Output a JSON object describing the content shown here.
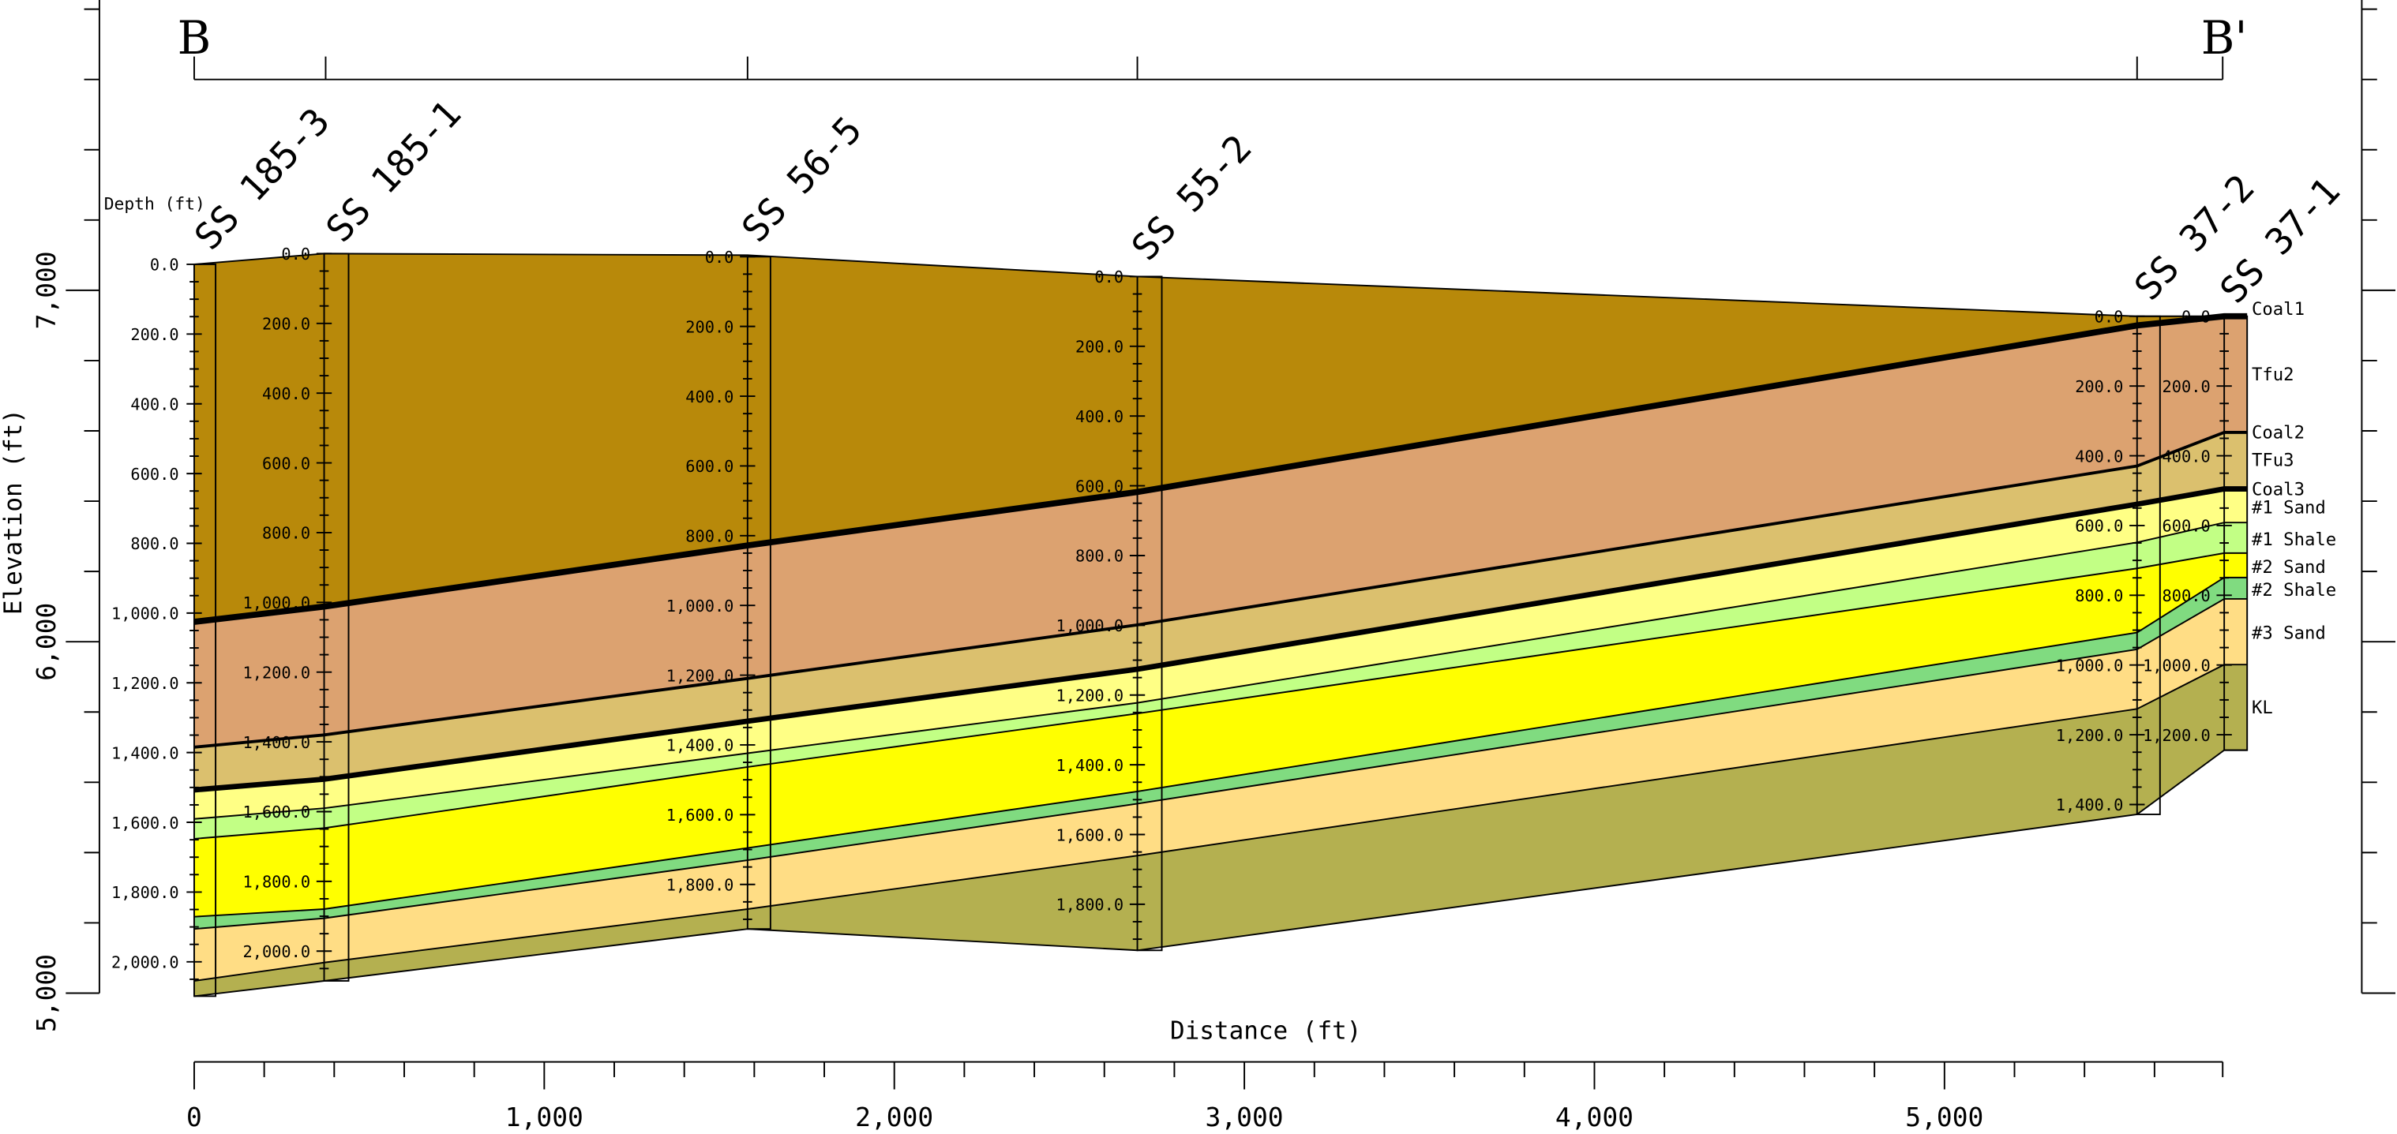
{
  "section": {
    "start": "B",
    "end": "B'"
  },
  "depth_label": "Depth (ft)",
  "wells": [
    {
      "name": "SS 185-3",
      "depths": [
        "0.0",
        "200.0",
        "400.0",
        "600.0",
        "800.0",
        "1,000.0",
        "1,200.0",
        "1,400.0",
        "1,600.0",
        "1,800.0",
        "2,000.0"
      ]
    },
    {
      "name": "SS 185-1",
      "depths": [
        "0.0",
        "200.0",
        "400.0",
        "600.0",
        "800.0",
        "1,000.0",
        "1,200.0",
        "1,400.0",
        "1,600.0",
        "1,800.0",
        "2,000.0"
      ]
    },
    {
      "name": "SS 56-5",
      "depths": [
        "0.0",
        "200.0",
        "400.0",
        "600.0",
        "800.0",
        "1,000.0",
        "1,200.0",
        "1,400.0",
        "1,600.0",
        "1,800.0"
      ]
    },
    {
      "name": "SS 55-2",
      "depths": [
        "0.0",
        "200.0",
        "400.0",
        "600.0",
        "800.0",
        "1,000.0",
        "1,200.0",
        "1,400.0",
        "1,600.0",
        "1,800.0"
      ]
    },
    {
      "name": "SS 37-2",
      "depths": [
        "0.0",
        "200.0",
        "400.0",
        "600.0",
        "800.0",
        "1,000.0",
        "1,200.0",
        "1,400.0"
      ]
    },
    {
      "name": "SS 37-1",
      "depths": [
        "0.0",
        "200.0",
        "400.0",
        "600.0",
        "800.0",
        "1,000.0",
        "1,200.0"
      ]
    }
  ],
  "layers": [
    "Coal1",
    "Tfu2",
    "Coal2",
    "TFu3",
    "Coal3",
    "#1 Sand",
    "#1 Shale",
    "#2 Sand",
    "#2 Shale",
    "#3 Sand",
    "KL"
  ],
  "elevation_axis": {
    "label": "Elevation (ft)",
    "ticks": [
      "7,000",
      "6,000",
      "5,000"
    ]
  },
  "distance_axis": {
    "label": "Distance (ft)",
    "ticks": [
      "0",
      "1,000",
      "2,000",
      "3,000",
      "4,000",
      "5,000"
    ]
  }
}
